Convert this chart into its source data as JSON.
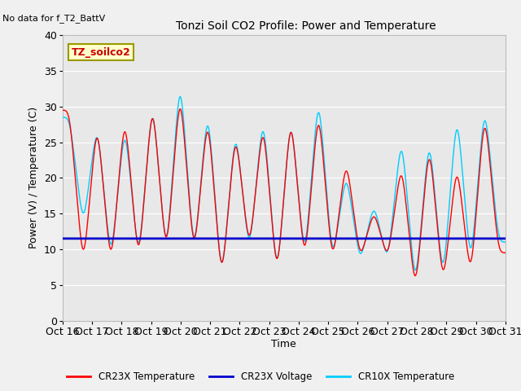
{
  "title": "Tonzi Soil CO2 Profile: Power and Temperature",
  "subtitle": "No data for f_T2_BattV",
  "ylabel": "Power (V) / Temperature (C)",
  "xlabel": "Time",
  "ylim": [
    0,
    40
  ],
  "yticks": [
    0,
    5,
    10,
    15,
    20,
    25,
    30,
    35,
    40
  ],
  "xtick_labels": [
    "Oct 16",
    "Oct 17",
    "Oct 18",
    "Oct 19",
    "Oct 20",
    "Oct 21",
    "Oct 22",
    "Oct 23",
    "Oct 24",
    "Oct 25",
    "Oct 26",
    "Oct 27",
    "Oct 28",
    "Oct 29",
    "Oct 30",
    "Oct 31"
  ],
  "legend_label": "TZ_soilco2",
  "series_labels": [
    "CR23X Temperature",
    "CR23X Voltage",
    "CR10X Temperature"
  ],
  "series_colors": [
    "#ff0000",
    "#0000cc",
    "#00ccff"
  ],
  "voltage_value": 11.5,
  "fig_bg_color": "#f0f0f0",
  "plot_bg_color": "#e8e8e8",
  "grid_color": "#ffffff",
  "cr23x_peaks": [
    29.5,
    7.0,
    28.5,
    7.0,
    29.5,
    7.5,
    31.5,
    8.5,
    33.0,
    8.5,
    29.5,
    5.0,
    27.0,
    9.5,
    28.5,
    5.5,
    29.5,
    7.5,
    30.5,
    7.5,
    23.0,
    8.5,
    15.5,
    8.5,
    22.5,
    3.5,
    25.5,
    4.5,
    22.5,
    5.5,
    30.0,
    9.5
  ],
  "cr10x_peaks": [
    28.5,
    13.0,
    28.0,
    8.0,
    28.0,
    8.0,
    31.5,
    8.5,
    35.0,
    8.5,
    30.5,
    5.0,
    27.5,
    9.0,
    29.5,
    5.5,
    29.5,
    8.0,
    32.5,
    8.0,
    21.0,
    8.0,
    16.5,
    8.0,
    26.5,
    4.0,
    26.5,
    5.0,
    30.0,
    7.0,
    31.0,
    11.0
  ]
}
